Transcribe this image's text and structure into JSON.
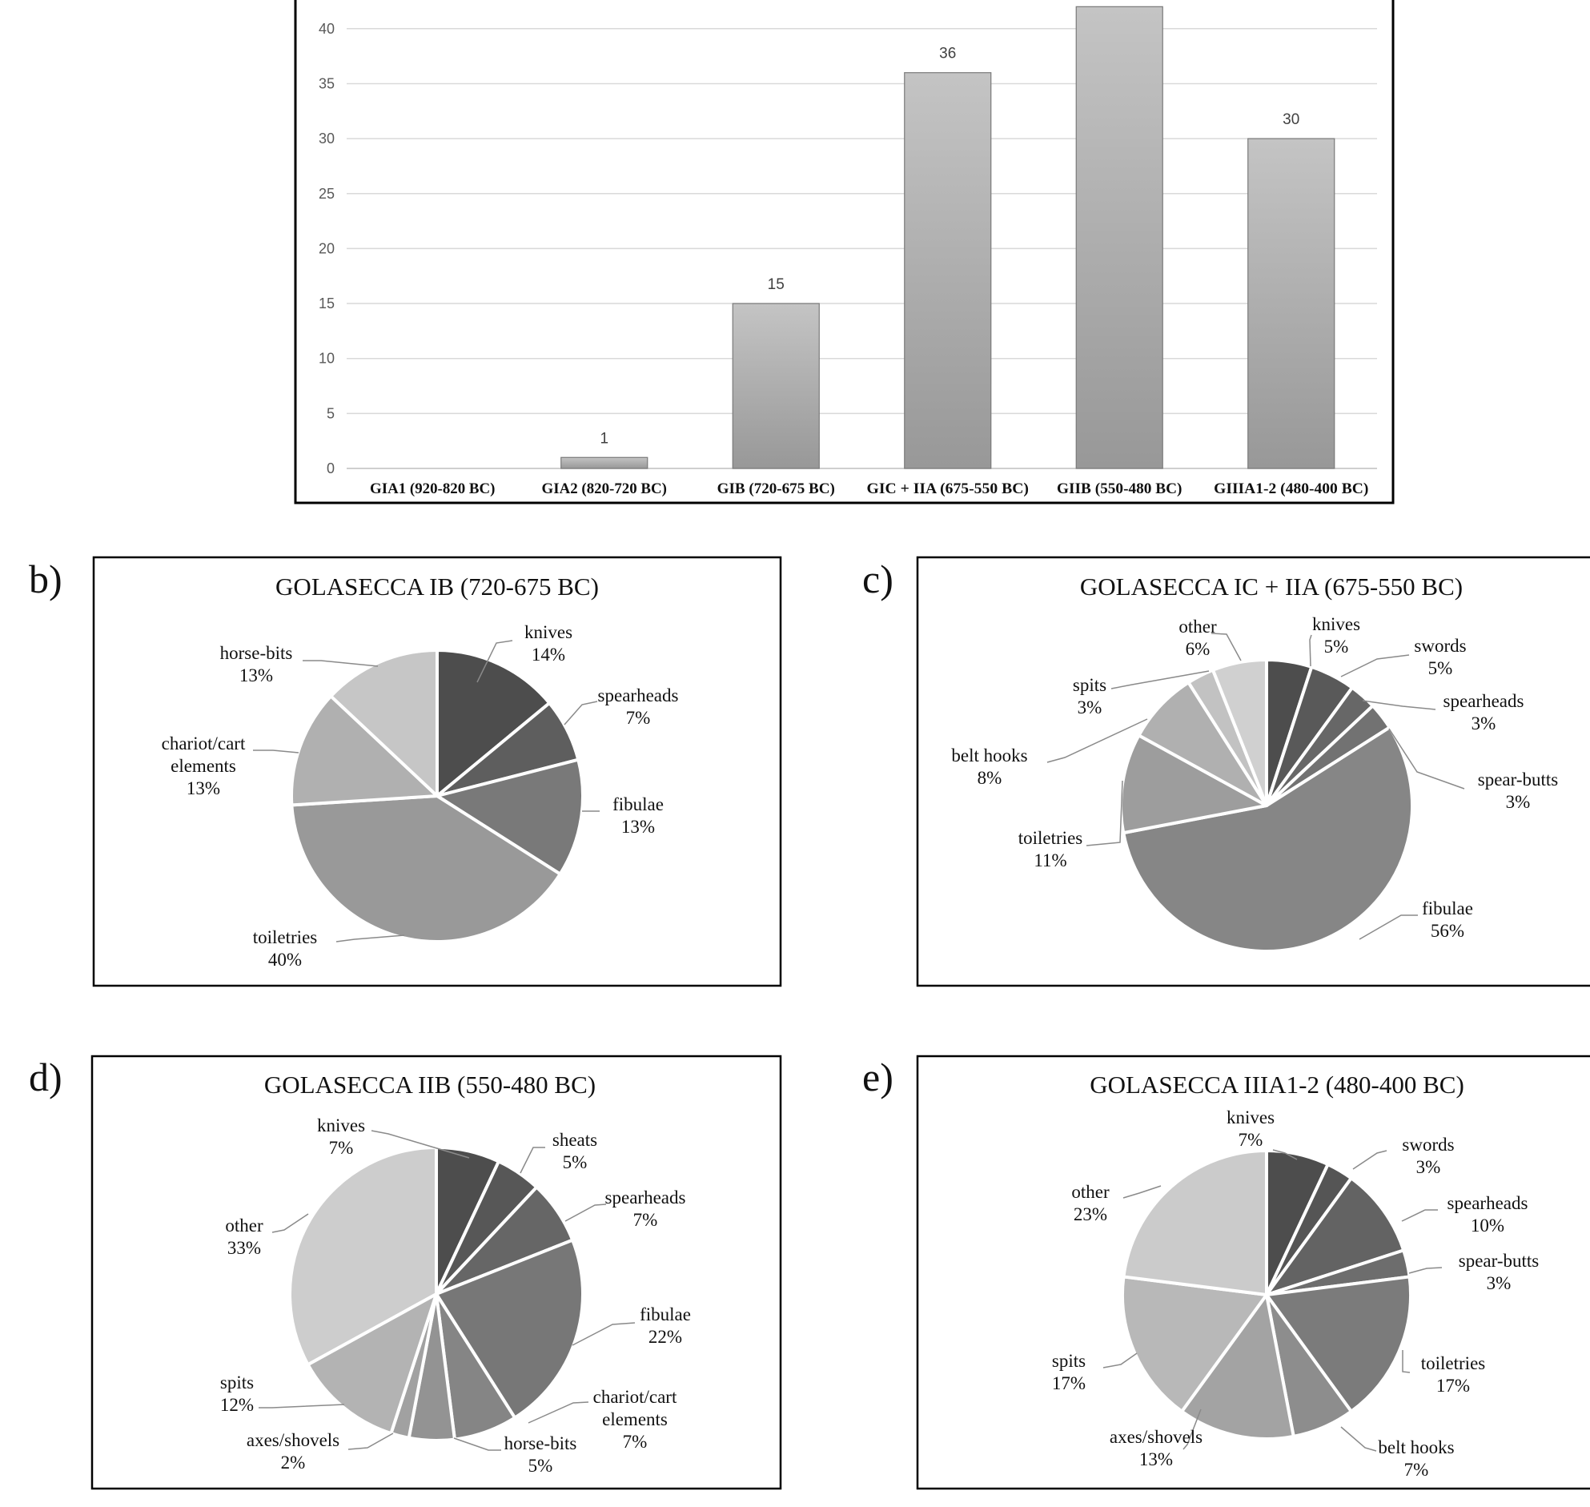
{
  "chart_data": [
    {
      "id": "a",
      "type": "bar",
      "categories": [
        "GIA1 (920-820 BC)",
        "GIA2 (820-720 BC)",
        "GIB (720-675 BC)",
        "GIC + IIA (675-550 BC)",
        "GIIB (550-480 BC)",
        "GIIIA1-2 (480-400 BC)"
      ],
      "values": [
        0,
        1,
        15,
        36,
        42,
        30
      ],
      "data_labels": [
        "",
        "1",
        "15",
        "36",
        "",
        "30"
      ],
      "ylim": [
        0,
        45
      ],
      "yticks": [
        0,
        5,
        10,
        15,
        20,
        25,
        30,
        35,
        40
      ],
      "grid": true,
      "xlabel": "",
      "ylabel": "",
      "title": ""
    },
    {
      "id": "b",
      "letter": "b)",
      "type": "pie",
      "title": "GOLASECCA IB (720-675 BC)",
      "slices": [
        {
          "name": "knives",
          "value": 14,
          "label": "14%",
          "color": "#4d4d4d"
        },
        {
          "name": "spearheads",
          "value": 7,
          "label": "7%",
          "color": "#5e5e5e"
        },
        {
          "name": "fibulae",
          "value": 13,
          "label": "13%",
          "color": "#797979"
        },
        {
          "name": "toiletries",
          "value": 40,
          "label": "40%",
          "color": "#999999"
        },
        {
          "name": "chariot/cart elements",
          "value": 13,
          "label": "13%",
          "color": "#b0b0b0"
        },
        {
          "name": "horse-bits",
          "value": 13,
          "label": "13%",
          "color": "#c6c6c6"
        }
      ]
    },
    {
      "id": "c",
      "letter": "c)",
      "type": "pie",
      "title": "GOLASECCA IC + IIA (675-550 BC)",
      "slices": [
        {
          "name": "knives",
          "value": 5,
          "label": "5%",
          "color": "#4d4d4d"
        },
        {
          "name": "swords",
          "value": 5,
          "label": "5%",
          "color": "#595959"
        },
        {
          "name": "spearheads",
          "value": 3,
          "label": "3%",
          "color": "#676767"
        },
        {
          "name": "spear-butts",
          "value": 3,
          "label": "3%",
          "color": "#727272"
        },
        {
          "name": "fibulae",
          "value": 56,
          "label": "56%",
          "color": "#868686"
        },
        {
          "name": "toiletries",
          "value": 11,
          "label": "11%",
          "color": "#9d9d9d"
        },
        {
          "name": "belt hooks",
          "value": 8,
          "label": "8%",
          "color": "#b0b0b0"
        },
        {
          "name": "spits",
          "value": 3,
          "label": "3%",
          "color": "#c2c2c2"
        },
        {
          "name": "other",
          "value": 6,
          "label": "6%",
          "color": "#d0d0d0"
        }
      ]
    },
    {
      "id": "d",
      "letter": "d)",
      "type": "pie",
      "title": "GOLASECCA IIB (550-480 BC)",
      "slices": [
        {
          "name": "knives",
          "value": 7,
          "label": "7%",
          "color": "#4d4d4d"
        },
        {
          "name": "sheats",
          "value": 5,
          "label": "5%",
          "color": "#575757"
        },
        {
          "name": "spearheads",
          "value": 7,
          "label": "7%",
          "color": "#666666"
        },
        {
          "name": "fibulae",
          "value": 22,
          "label": "22%",
          "color": "#777777"
        },
        {
          "name": "chariot/cart elements",
          "value": 7,
          "label": "7%",
          "color": "#858585"
        },
        {
          "name": "horse-bits",
          "value": 5,
          "label": "5%",
          "color": "#939393"
        },
        {
          "name": "axes/shovels",
          "value": 2,
          "label": "2%",
          "color": "#a1a1a1"
        },
        {
          "name": "spits",
          "value": 12,
          "label": "12%",
          "color": "#b3b3b3"
        },
        {
          "name": "other",
          "value": 33,
          "label": "33%",
          "color": "#cdcdcd"
        }
      ]
    },
    {
      "id": "e",
      "letter": "e)",
      "type": "pie",
      "title": "GOLASECCA IIIA1-2 (480-400 BC)",
      "slices": [
        {
          "name": "knives",
          "value": 7,
          "label": "7%",
          "color": "#4d4d4d"
        },
        {
          "name": "swords",
          "value": 3,
          "label": "3%",
          "color": "#555555"
        },
        {
          "name": "spearheads",
          "value": 10,
          "label": "10%",
          "color": "#636363"
        },
        {
          "name": "spear-butts",
          "value": 3,
          "label": "3%",
          "color": "#6d6d6d"
        },
        {
          "name": "toiletries",
          "value": 17,
          "label": "17%",
          "color": "#7b7b7b"
        },
        {
          "name": "belt hooks",
          "value": 7,
          "label": "7%",
          "color": "#8d8d8d"
        },
        {
          "name": "axes/shovels",
          "value": 13,
          "label": "13%",
          "color": "#a3a3a3"
        },
        {
          "name": "spits",
          "value": 17,
          "label": "17%",
          "color": "#b8b8b8"
        },
        {
          "name": "other",
          "value": 23,
          "label": "23%",
          "color": "#cbcbcb"
        }
      ]
    }
  ]
}
